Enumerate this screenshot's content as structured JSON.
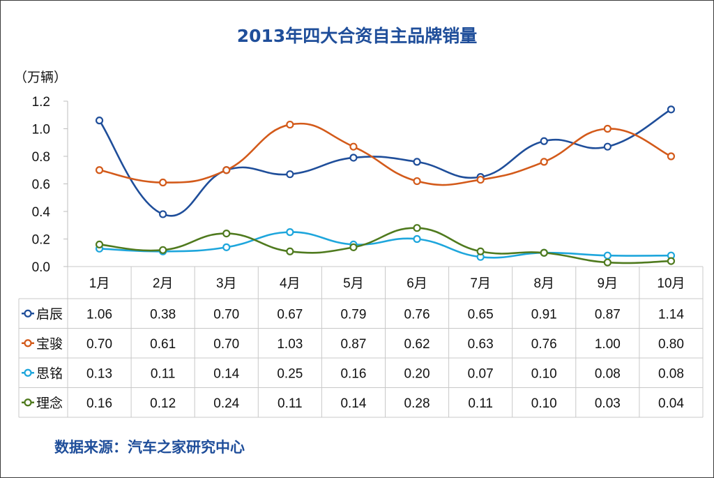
{
  "chart_data": {
    "type": "line",
    "title": "2013年四大合资自主品牌销量",
    "unit_label": "（万辆）",
    "categories": [
      "1月",
      "2月",
      "3月",
      "4月",
      "5月",
      "6月",
      "7月",
      "8月",
      "9月",
      "10月"
    ],
    "ylim": [
      0,
      1.2
    ],
    "yticks": [
      "0.0",
      "0.2",
      "0.4",
      "0.6",
      "0.8",
      "1.0",
      "1.2"
    ],
    "grid": false,
    "legend": "data-table",
    "series": [
      {
        "name": "启辰",
        "color": "#1f4e9a",
        "values": [
          1.06,
          0.38,
          0.7,
          0.67,
          0.79,
          0.76,
          0.65,
          0.91,
          0.87,
          1.14
        ],
        "labels": [
          "1.06",
          "0.38",
          "0.70",
          "0.67",
          "0.79",
          "0.76",
          "0.65",
          "0.91",
          "0.87",
          "1.14"
        ]
      },
      {
        "name": "宝骏",
        "color": "#d35a1a",
        "values": [
          0.7,
          0.61,
          0.7,
          1.03,
          0.87,
          0.62,
          0.63,
          0.76,
          1.0,
          0.8
        ],
        "labels": [
          "0.70",
          "0.61",
          "0.70",
          "1.03",
          "0.87",
          "0.62",
          "0.63",
          "0.76",
          "1.00",
          "0.80"
        ]
      },
      {
        "name": "思铭",
        "color": "#1ea6dc",
        "values": [
          0.13,
          0.11,
          0.14,
          0.25,
          0.16,
          0.2,
          0.07,
          0.1,
          0.08,
          0.08
        ],
        "labels": [
          "0.13",
          "0.11",
          "0.14",
          "0.25",
          "0.16",
          "0.20",
          "0.07",
          "0.10",
          "0.08",
          "0.08"
        ]
      },
      {
        "name": "理念",
        "color": "#4f7a1e",
        "values": [
          0.16,
          0.12,
          0.24,
          0.11,
          0.14,
          0.28,
          0.11,
          0.1,
          0.03,
          0.04
        ],
        "labels": [
          "0.16",
          "0.12",
          "0.24",
          "0.11",
          "0.14",
          "0.28",
          "0.11",
          "0.10",
          "0.03",
          "0.04"
        ]
      }
    ]
  },
  "source": "数据来源：汽车之家研究中心"
}
